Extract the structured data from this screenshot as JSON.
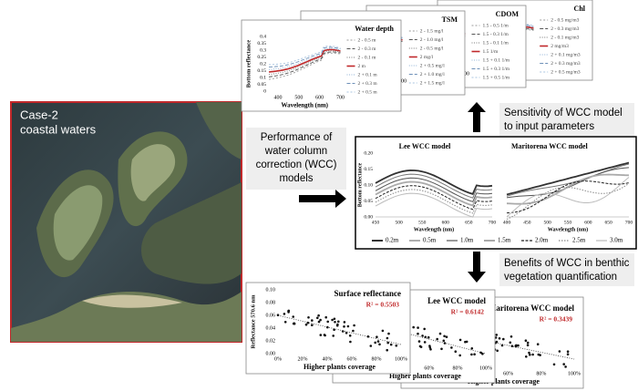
{
  "image_label": [
    "Case-2",
    "coastal waters"
  ],
  "performance_text": [
    "Performance of",
    "water column",
    "correction (WCC)",
    "models"
  ],
  "sensitivity_text": [
    "Sensitivity of WCC model",
    "to input parameters"
  ],
  "benefits_text": [
    "Benefits of WCC in benthic",
    "vegetation quantification"
  ],
  "sensitivity_panels": [
    {
      "title": "Water depth",
      "y_label": "Bottom reflectance",
      "x_label": "Wavelength (nm)",
      "yticks": [
        "0.4",
        "0.35",
        "0.3",
        "0.25",
        "0.2",
        "0.15",
        "0.1",
        "0.05",
        "0"
      ],
      "xticks": [
        "400",
        "500",
        "600",
        "700"
      ],
      "legend": [
        "2 - 0.5 m",
        "2 - 0.3 m",
        "2 - 0.1 m",
        "2 m",
        "2 + 0.1 m",
        "2 + 0.3 m",
        "2 + 0.5 m"
      ]
    },
    {
      "title": "TSM",
      "xticks": [
        "700"
      ],
      "legend": [
        "2 - 1.5 mg/l",
        "2 - 1.0 mg/l",
        "2 - 0.5 mg/l",
        "2 mg/l",
        "2 + 0.5 mg/l",
        "2 + 1.0 mg/l",
        "2 + 1.5 mg/l"
      ]
    },
    {
      "title": "CDOM",
      "xticks": [
        "700"
      ],
      "legend": [
        "1.5 - 0.5 1/m",
        "1.5 - 0.3 1/m",
        "1.5 - 0.1 1/m",
        "1.5 1/m",
        "1.5 + 0.1 1/m",
        "1.5 + 0.3 1/m",
        "1.5 + 0.5 1/m"
      ]
    },
    {
      "title": "Chl",
      "legend": [
        "2 - 0.5 mg/m3",
        "2 - 0.3 mg/m3",
        "2 - 0.1 mg/m3",
        "2 mg/m3",
        "2 + 0.1 mg/m3",
        "2 + 0.3 mg/m3",
        "2 + 0.5 mg/m3"
      ]
    }
  ],
  "wcc_panels": [
    {
      "title": "Lee WCC model",
      "y_label": "Bottom reflectance",
      "x_label": "Wavelength (nm)",
      "yticks": [
        "0.20",
        "0.15",
        "0.10",
        "0.05",
        "0.00"
      ],
      "xticks": [
        "450",
        "500",
        "550",
        "600",
        "650",
        "700"
      ]
    },
    {
      "title": "Maritorena WCC model",
      "x_label": "Wavelength (nm)",
      "xticks": [
        "400",
        "450",
        "500",
        "550",
        "600",
        "650",
        "700"
      ]
    }
  ],
  "wcc_legend": [
    "0.2m",
    "0.5m",
    "1.0m",
    "1.5m",
    "2.0m",
    "2.5m",
    "3.0m"
  ],
  "regression_panels": [
    {
      "title": "Surface reflectance",
      "r2": "R² = 0.5503",
      "y_label": "Reflectance 570.6 nm",
      "x_label": "Higher plants coverage",
      "yticks": [
        "0.10",
        "0.08",
        "0.06",
        "0.04",
        "0.02",
        "0.00"
      ],
      "xticks": [
        "0%",
        "20%",
        "40%",
        "60%",
        "80%",
        "100%"
      ]
    },
    {
      "title": "Lee WCC model",
      "r2": "R² = 0.6142",
      "x_label": "Higher plants coverage",
      "xticks": [
        "40%",
        "60%",
        "80%",
        "100%"
      ]
    },
    {
      "title": "Maritorena WCC model",
      "r2": "R² = 0.3439",
      "x_label": "Higher plants coverage",
      "xticks": [
        "40%",
        "60%",
        "80%",
        "100%"
      ]
    }
  ]
}
